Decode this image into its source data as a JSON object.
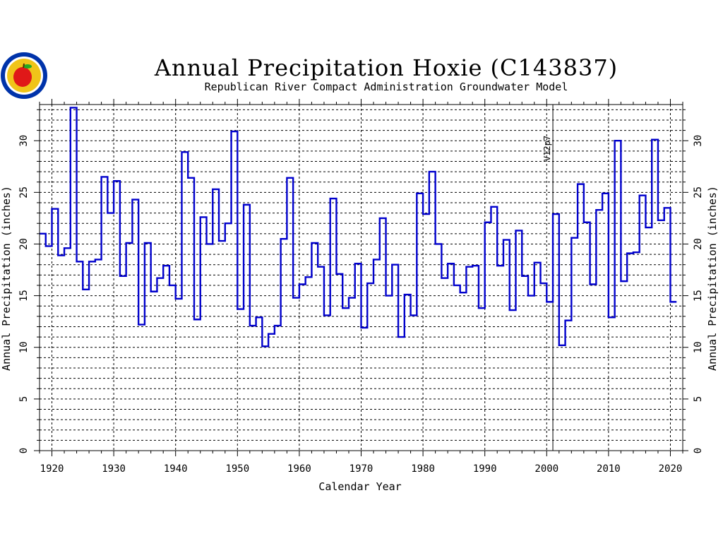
{
  "title": "Annual Precipitation Hoxie (C143837)",
  "subtitle": "Republican River Compact Administration Groundwater Model",
  "logo": {
    "icon": "apple-seal-icon",
    "colors": {
      "ring": "#0033aa",
      "inner": "#f0c419",
      "apple": "#e01818",
      "leaf": "#22aa22"
    }
  },
  "colors": {
    "line": "#0000cc",
    "grid": "#000000",
    "frame": "#000000"
  },
  "chart_data": {
    "type": "line",
    "step": true,
    "title": "Annual Precipitation Hoxie (C143837)",
    "subtitle": "Republican River Compact Administration Groundwater Model",
    "xlabel": "Calendar Year",
    "ylabel": "Annual Precipitation (inches)",
    "ylabel_right": "Annual Precipitation (inches)",
    "xlim": [
      1918,
      2022
    ],
    "ylim": [
      0,
      33.5
    ],
    "x_ticks": [
      1920,
      1930,
      1940,
      1950,
      1960,
      1970,
      1980,
      1990,
      2000,
      2010,
      2020
    ],
    "y_ticks": [
      0,
      5,
      10,
      15,
      20,
      25,
      30
    ],
    "y_grid_step": 1,
    "grid": true,
    "annotation": {
      "x": 2001,
      "label": "V12p7"
    },
    "series": [
      {
        "x": [
          1918,
          1919,
          1920,
          1921,
          1922,
          1923,
          1924,
          1925,
          1926,
          1927,
          1928,
          1929,
          1930,
          1931,
          1932,
          1933,
          1934,
          1935,
          1936,
          1937,
          1938,
          1939,
          1940,
          1941,
          1942,
          1943,
          1944,
          1945,
          1946,
          1947,
          1948,
          1949,
          1950,
          1951,
          1952,
          1953,
          1954,
          1955,
          1956,
          1957,
          1958,
          1959,
          1960,
          1961,
          1962,
          1963,
          1964,
          1965,
          1966,
          1967,
          1968,
          1969,
          1970,
          1971,
          1972,
          1973,
          1974,
          1975,
          1976,
          1977,
          1978,
          1979,
          1980,
          1981,
          1982,
          1983,
          1984,
          1985,
          1986,
          1987,
          1988,
          1989,
          1990,
          1991,
          1992,
          1993,
          1994,
          1995,
          1996,
          1997,
          1998,
          1999,
          2000,
          2001,
          2002,
          2003,
          2004,
          2005,
          2006,
          2007,
          2008,
          2009,
          2010,
          2011,
          2012,
          2013,
          2014,
          2015,
          2016,
          2017,
          2018,
          2019,
          2020
        ],
        "values": [
          21.0,
          19.8,
          23.4,
          18.9,
          19.6,
          33.2,
          18.3,
          15.6,
          18.3,
          18.5,
          26.5,
          23.0,
          26.1,
          16.9,
          20.1,
          24.3,
          12.2,
          20.1,
          15.4,
          16.7,
          17.9,
          16.0,
          14.7,
          28.9,
          26.4,
          12.7,
          22.6,
          20.0,
          25.3,
          20.3,
          22.0,
          30.9,
          13.7,
          23.8,
          12.1,
          12.9,
          10.1,
          11.3,
          12.1,
          20.5,
          26.4,
          14.8,
          16.1,
          16.8,
          20.1,
          17.8,
          13.1,
          24.4,
          17.1,
          13.8,
          14.8,
          18.1,
          11.9,
          16.2,
          18.5,
          22.5,
          15.0,
          18.0,
          11.0,
          15.1,
          13.1,
          24.9,
          22.9,
          27.0,
          20.0,
          16.7,
          18.1,
          16.0,
          15.3,
          17.8,
          17.9,
          13.8,
          22.1,
          23.6,
          17.9,
          20.4,
          13.6,
          21.3,
          16.9,
          15.0,
          18.2,
          16.2,
          14.4,
          22.9,
          10.2,
          12.6,
          20.6,
          25.8,
          22.1,
          16.1,
          23.3,
          24.9,
          12.9,
          30.0,
          16.4,
          19.1,
          19.2,
          24.7,
          21.6,
          30.1,
          22.3,
          23.5,
          14.4
        ]
      }
    ]
  }
}
